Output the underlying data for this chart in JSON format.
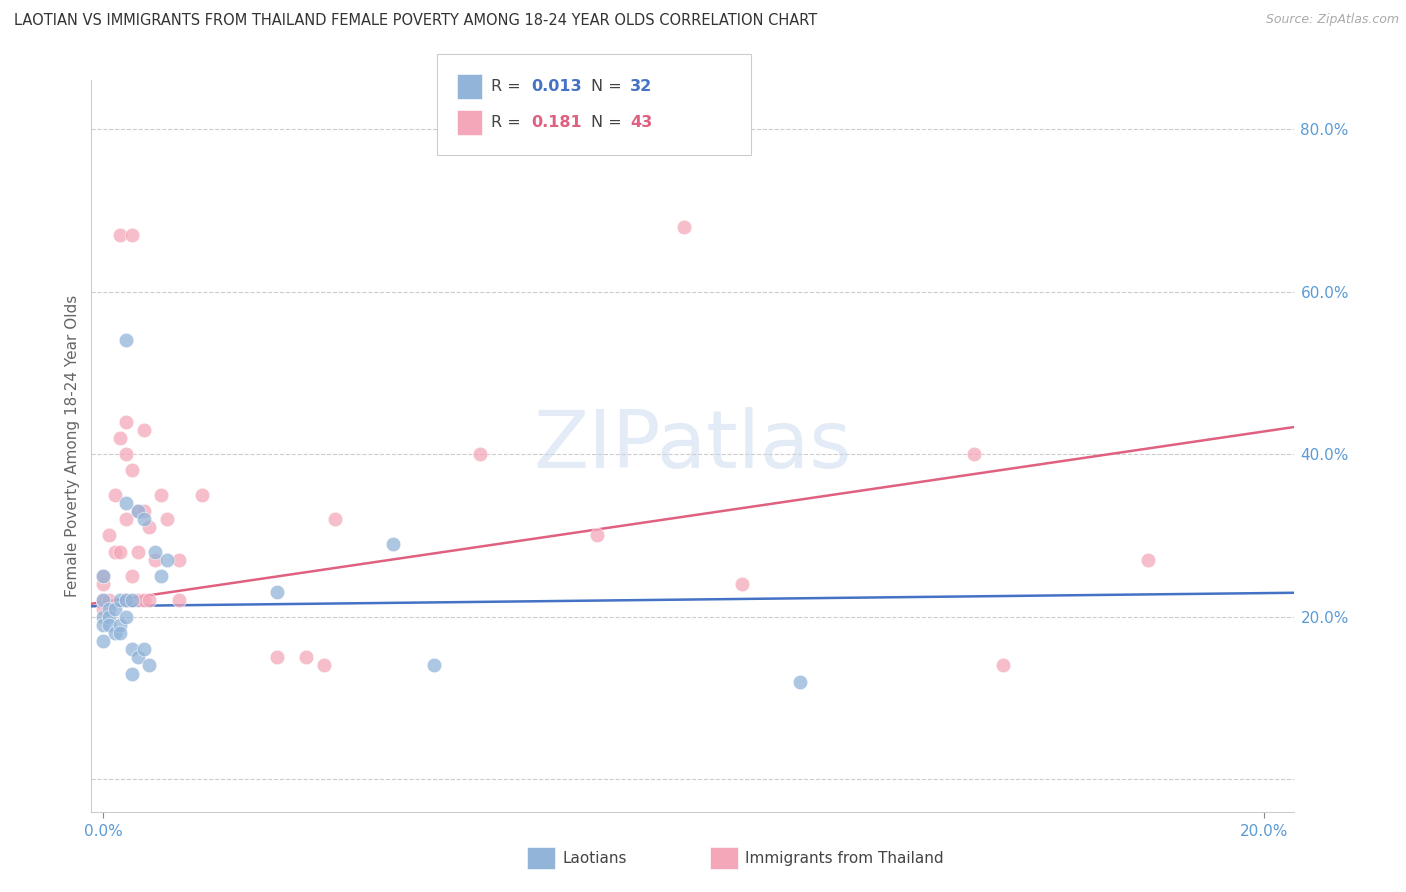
{
  "title": "LAOTIAN VS IMMIGRANTS FROM THAILAND FEMALE POVERTY AMONG 18-24 YEAR OLDS CORRELATION CHART",
  "source": "Source: ZipAtlas.com",
  "ylabel": "Female Poverty Among 18-24 Year Olds",
  "x_min": -0.002,
  "x_max": 0.205,
  "y_min": -0.04,
  "y_max": 0.86,
  "y_ticks": [
    0.0,
    0.2,
    0.4,
    0.6,
    0.8
  ],
  "y_tick_labels": [
    "",
    "20.0%",
    "40.0%",
    "60.0%",
    "80.0%"
  ],
  "axis_label_color": "#5b9bd5",
  "background_color": "#ffffff",
  "watermark_zip": "ZIP",
  "watermark_atlas": "atlas",
  "legend_r1_val": "0.013",
  "legend_n1_val": "32",
  "legend_r2_val": "0.181",
  "legend_n2_val": "43",
  "laotian_color": "#92b4d9",
  "thailand_color": "#f4a7b9",
  "laotian_line_color": "#4472c4",
  "thailand_line_color": "#e06080",
  "laotian_scatter": {
    "x": [
      0.0,
      0.0,
      0.0,
      0.0,
      0.0,
      0.001,
      0.001,
      0.001,
      0.002,
      0.002,
      0.003,
      0.003,
      0.003,
      0.004,
      0.004,
      0.004,
      0.004,
      0.005,
      0.005,
      0.005,
      0.006,
      0.006,
      0.007,
      0.007,
      0.008,
      0.009,
      0.01,
      0.011,
      0.03,
      0.05,
      0.057,
      0.12
    ],
    "y": [
      0.22,
      0.2,
      0.19,
      0.17,
      0.25,
      0.21,
      0.2,
      0.19,
      0.21,
      0.18,
      0.22,
      0.19,
      0.18,
      0.54,
      0.34,
      0.22,
      0.2,
      0.22,
      0.16,
      0.13,
      0.33,
      0.15,
      0.32,
      0.16,
      0.14,
      0.28,
      0.25,
      0.27,
      0.23,
      0.29,
      0.14,
      0.12
    ]
  },
  "thailand_scatter": {
    "x": [
      0.0,
      0.0,
      0.0,
      0.0,
      0.001,
      0.001,
      0.002,
      0.002,
      0.003,
      0.003,
      0.003,
      0.004,
      0.004,
      0.004,
      0.004,
      0.005,
      0.005,
      0.005,
      0.006,
      0.006,
      0.006,
      0.007,
      0.007,
      0.007,
      0.008,
      0.008,
      0.009,
      0.01,
      0.011,
      0.013,
      0.013,
      0.017,
      0.03,
      0.035,
      0.038,
      0.04,
      0.065,
      0.085,
      0.1,
      0.11,
      0.15,
      0.155,
      0.18
    ],
    "y": [
      0.24,
      0.22,
      0.21,
      0.25,
      0.3,
      0.22,
      0.35,
      0.28,
      0.67,
      0.42,
      0.28,
      0.44,
      0.4,
      0.32,
      0.22,
      0.67,
      0.38,
      0.25,
      0.33,
      0.28,
      0.22,
      0.43,
      0.33,
      0.22,
      0.31,
      0.22,
      0.27,
      0.35,
      0.32,
      0.27,
      0.22,
      0.35,
      0.15,
      0.15,
      0.14,
      0.32,
      0.4,
      0.3,
      0.68,
      0.24,
      0.4,
      0.14,
      0.27
    ]
  },
  "laotian_reg": {
    "intercept": 0.213,
    "slope": 0.08
  },
  "thailand_reg": {
    "intercept": 0.218,
    "slope": 1.05
  }
}
